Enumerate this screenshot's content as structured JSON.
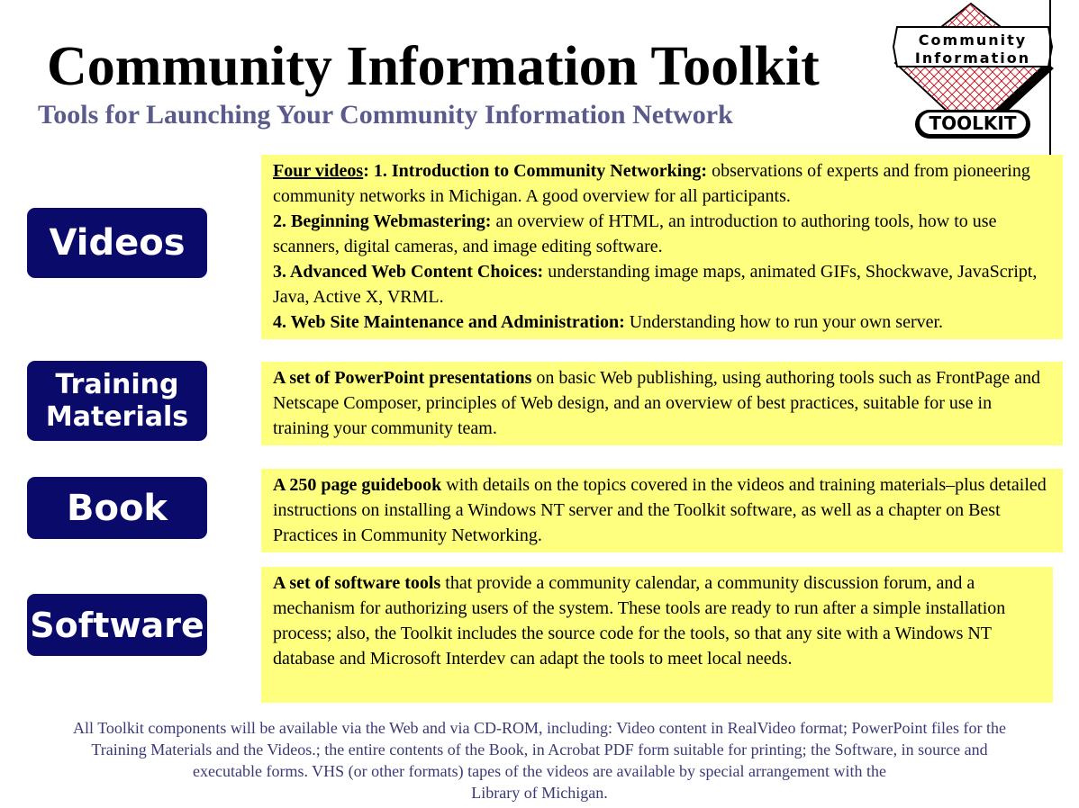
{
  "header": {
    "title": "Community Information Toolkit",
    "subtitle": "Tools for Launching Your Community Information Network"
  },
  "logo": {
    "line1": "Community",
    "line2": "Information",
    "line3": "TOOLKIT"
  },
  "sections": [
    {
      "button_lines": [
        "Videos"
      ],
      "items": [
        {
          "heading": "",
          "heading_underlined": "Four videos",
          "heading_after": ":",
          "bold": " 1. Introduction to Community Networking:",
          "text": " observations of experts and from pioneering community networks in Michigan.  A good overview for all participants."
        },
        {
          "bold": "2. Beginning Webmastering:",
          "text": " an overview of HTML, an introduction to authoring tools, how to use scanners, digital cameras, and image editing software."
        },
        {
          "bold": "3. Advanced Web Content Choices:",
          "text": " understanding image maps, animated GIFs, Shockwave, JavaScript, Java, Active X, VRML."
        },
        {
          "bold": "4. Web Site Maintenance and Administration:",
          "text": " Understanding how to run your own server."
        }
      ]
    },
    {
      "button_lines": [
        "Training",
        "Materials"
      ],
      "items": [
        {
          "bold": "A set of PowerPoint presentations",
          "text": " on basic Web publishing, using authoring tools such as FrontPage and Netscape Composer, principles of Web design, and an overview of best practices, suitable for use in training your community team."
        }
      ]
    },
    {
      "button_lines": [
        "Book"
      ],
      "items": [
        {
          "bold": "A 250 page guidebook",
          "text": " with details on the topics covered in the videos and training materials–plus detailed instructions on installing a Windows NT server and the Toolkit software, as well as a chapter on Best Practices in Community Networking."
        }
      ]
    },
    {
      "button_lines": [
        "Software"
      ],
      "items": [
        {
          "bold": "A set of software tools",
          "text": " that provide a community calendar, a community discussion forum, and a mechanism for authorizing users of the system.  These tools are ready to run after a simple installation process; also, the Toolkit includes the source code for the tools, so that any site with a Windows NT database and Microsoft Interdev can adapt the tools to meet local needs."
        }
      ]
    }
  ],
  "footer": {
    "lines": [
      "All Toolkit components will be available via the Web and via CD-ROM, including: Video content in RealVideo format; PowerPoint files for the",
      "Training Materials and the Videos.; the entire contents of the Book, in Acrobat PDF form suitable for printing; the Software, in  source and",
      "executable forms.  VHS (or other formats) tapes of the videos are available by special arrangement with the",
      "Library of Michigan."
    ]
  },
  "colors": {
    "button_bg": "#0a0a6a",
    "box_bg": "#ffff7f",
    "subtitle": "#5a5a8c",
    "footer": "#3a3a78",
    "logo_red": "#c0202a"
  }
}
